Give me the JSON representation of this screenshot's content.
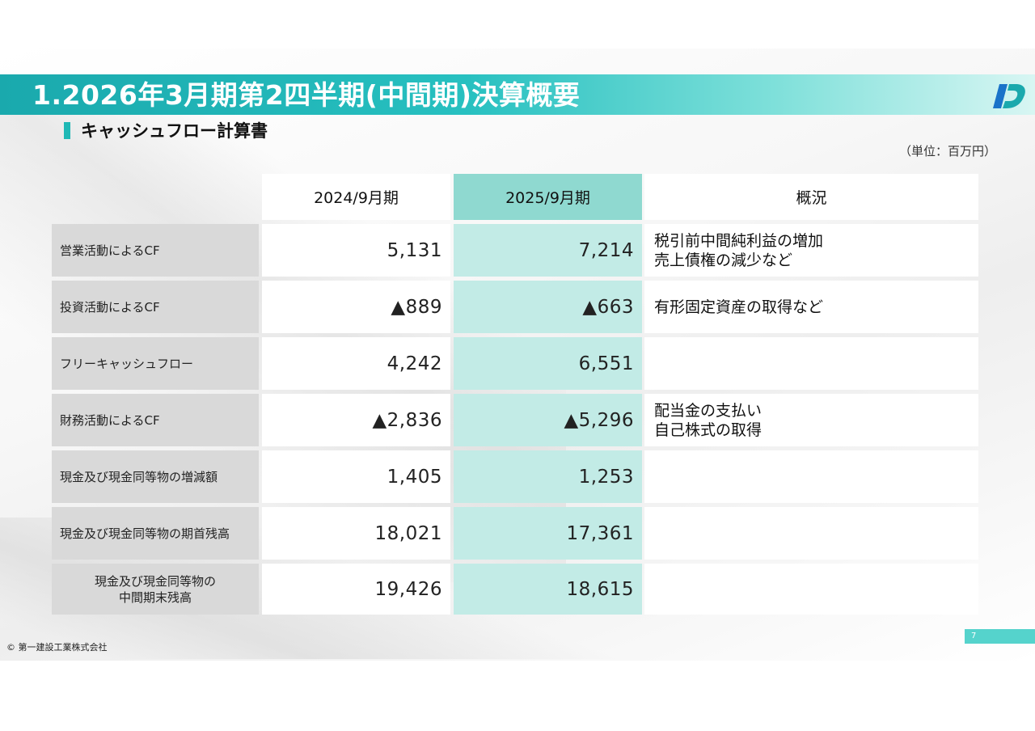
{
  "title": "1.2026年3月期第2四半期(中間期)決算概要",
  "subtitle": "キャッシュフロー計算書",
  "unit": "（単位：百万円）",
  "colors": {
    "accent": "#1fb8b5",
    "highlight_header": "#8fd9d0",
    "highlight_cell": "#c2ebe6",
    "label_bg": "#d9d9d9"
  },
  "table": {
    "headers": [
      "2024/9月期",
      "2025/9月期",
      "概況"
    ],
    "rows": [
      {
        "label": "営業活動によるCF",
        "v2024": "5,131",
        "v2025": "7,214",
        "note": "税引前中間純利益の増加\n売上債権の減少など"
      },
      {
        "label": "投資活動によるCF",
        "v2024": "▲889",
        "v2025": "▲663",
        "note": "有形固定資産の取得など"
      },
      {
        "label": "フリーキャッシュフロー",
        "v2024": "4,242",
        "v2025": "6,551",
        "note": ""
      },
      {
        "label": "財務活動によるCF",
        "v2024": "▲2,836",
        "v2025": "▲5,296",
        "note": "配当金の支払い\n自己株式の取得"
      },
      {
        "label": "現金及び現金同等物の増減額",
        "v2024": "1,405",
        "v2025": "1,253",
        "note": ""
      },
      {
        "label": "現金及び現金同等物の期首残高",
        "v2024": "18,021",
        "v2025": "17,361",
        "note": ""
      },
      {
        "label": "現金及び現金同等物の\n中間期末残高",
        "v2024": "19,426",
        "v2025": "18,615",
        "note": ""
      }
    ]
  },
  "logo_icon": "company-logo",
  "footer": {
    "copyright": "© 第一建設工業株式会社",
    "page": "7"
  }
}
